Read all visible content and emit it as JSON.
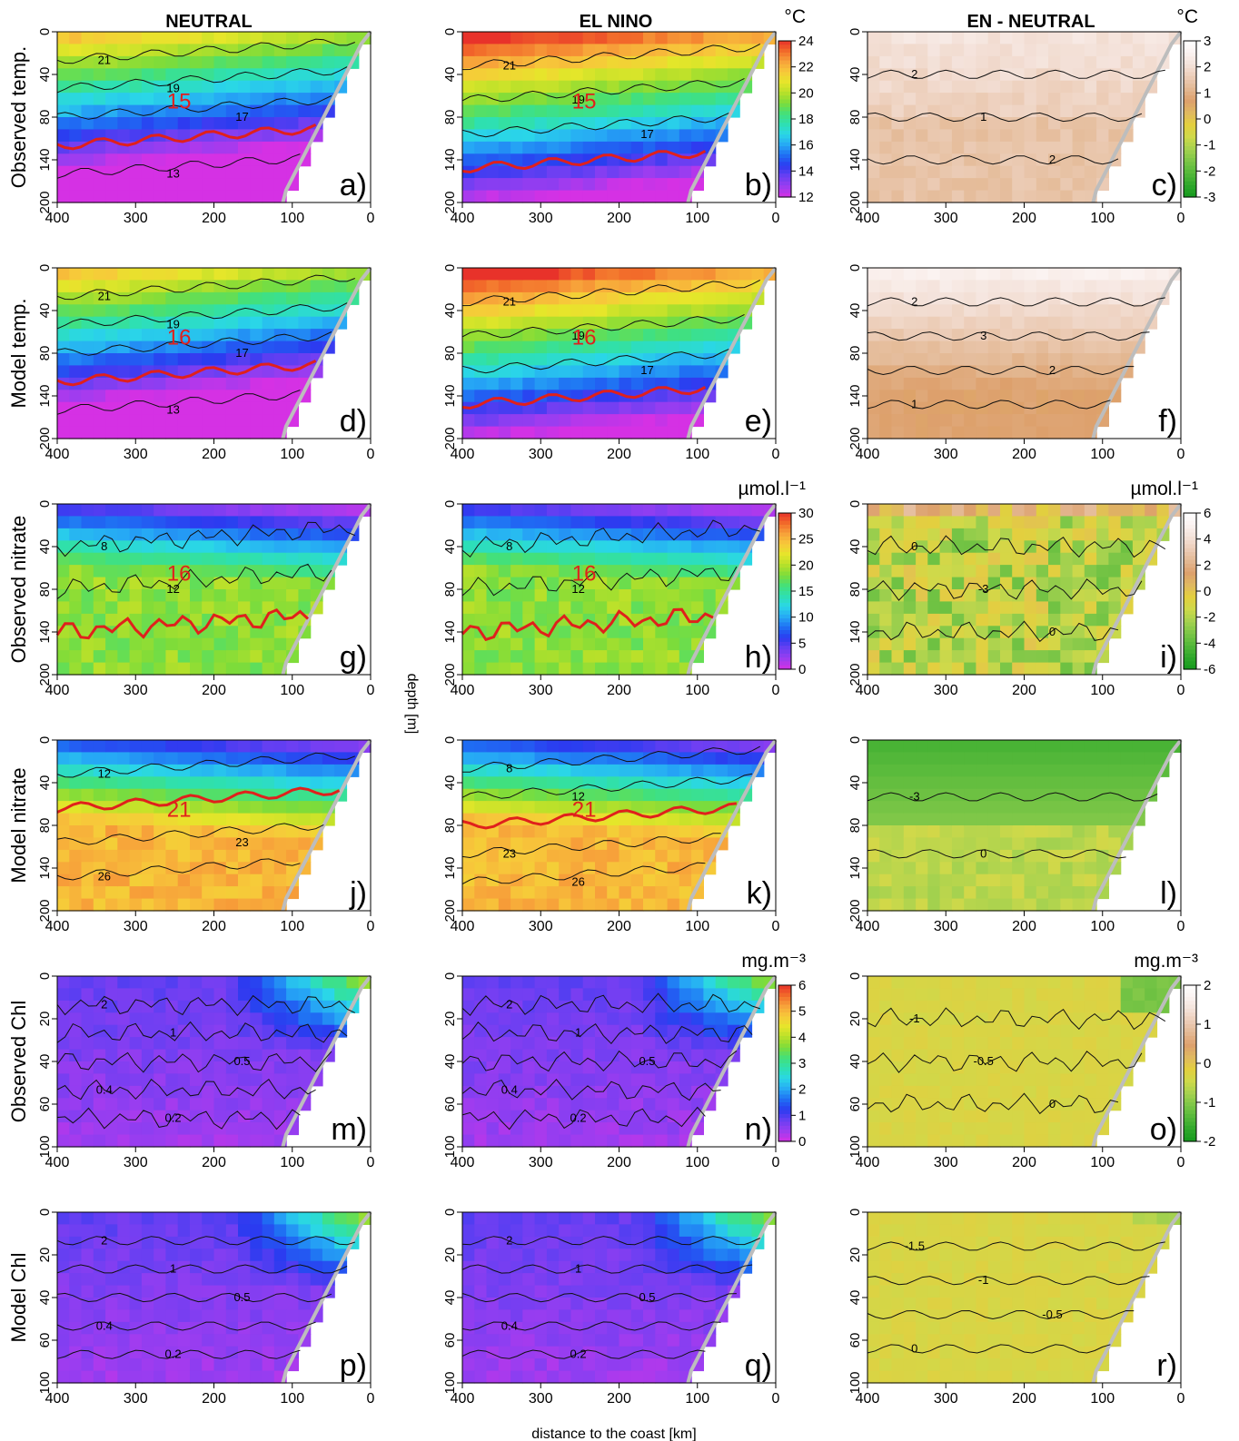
{
  "column_titles": [
    "NEUTRAL",
    "EL NINO",
    "EN - NEUTRAL"
  ],
  "xlabel": "distance to the coast [km]",
  "ylabel": "depth [m]",
  "colorbar_colors": {
    "temp": [
      "#d531e4",
      "#9b3df0",
      "#6a3ff2",
      "#2b3bf0",
      "#1f6ef3",
      "#26a8f5",
      "#2ad6e8",
      "#2ee0b0",
      "#43e07a",
      "#7ddc3a",
      "#b7e02a",
      "#e6e62a",
      "#f7c93a",
      "#f7a23a",
      "#f26a2a",
      "#e8322a"
    ],
    "diff": [
      "#159a1e",
      "#2fa82b",
      "#55b93a",
      "#7cc647",
      "#a6d24f",
      "#cfd94a",
      "#e3cf3f",
      "#e0b960",
      "#dda06c",
      "#e3b893",
      "#eccdb8",
      "#f4e2da",
      "#fbf3f1",
      "#ffffff"
    ]
  },
  "rows": [
    {
      "label": "Observed temp.",
      "yticks": [
        "0",
        "40",
        "80",
        "140",
        "200"
      ],
      "chart_data": [
        {
          "type": "heatmap",
          "panel": "a)",
          "title": "NEUTRAL",
          "variable": "temperature",
          "unit": "°C",
          "x": [
            400,
            300,
            200,
            100,
            0
          ],
          "ylim": [
            0,
            200
          ],
          "contours": [
            21,
            19,
            17,
            15,
            13
          ],
          "highlight_isoline": 15,
          "max_distance_km_by_depth": [
            [
              0,
              60
            ],
            [
              80,
              60
            ],
            [
              140,
              80
            ],
            [
              200,
              100
            ]
          ]
        },
        {
          "type": "heatmap",
          "panel": "b)",
          "title": "EL NINO",
          "variable": "temperature",
          "unit": "°C",
          "x": [
            400,
            300,
            200,
            100,
            0
          ],
          "ylim": [
            0,
            200
          ],
          "contours": [
            21,
            19,
            17,
            15
          ],
          "highlight_isoline": 15,
          "colorbar_ticks": [
            24,
            22,
            20,
            18,
            16,
            14,
            12
          ],
          "max_distance_km_by_depth": [
            [
              0,
              10
            ],
            [
              80,
              60
            ],
            [
              140,
              100
            ],
            [
              200,
              100
            ]
          ]
        },
        {
          "type": "heatmap",
          "panel": "c)",
          "title": "EN - NEUTRAL",
          "variable": "temperature difference",
          "unit": "°C",
          "x": [
            400,
            300,
            200,
            100,
            0
          ],
          "ylim": [
            0,
            200
          ],
          "contours": [
            2,
            1,
            2
          ],
          "colorbar_ticks": [
            3,
            2,
            1,
            0,
            -1,
            -2,
            -3
          ]
        }
      ]
    },
    {
      "label": "Model temp.",
      "yticks": [
        "0",
        "40",
        "80",
        "140",
        "200"
      ],
      "chart_data": [
        {
          "type": "heatmap",
          "panel": "d)",
          "title": "NEUTRAL",
          "variable": "temperature",
          "unit": "°C",
          "x": [
            400,
            300,
            200,
            100,
            0
          ],
          "ylim": [
            0,
            200
          ],
          "contours": [
            21,
            19,
            17,
            16,
            13
          ],
          "highlight_isoline": 16
        },
        {
          "type": "heatmap",
          "panel": "e)",
          "title": "EL NINO",
          "variable": "temperature",
          "unit": "°C",
          "x": [
            400,
            300,
            200,
            100,
            0
          ],
          "ylim": [
            0,
            200
          ],
          "contours": [
            21,
            19,
            17,
            16
          ],
          "highlight_isoline": 16
        },
        {
          "type": "heatmap",
          "panel": "f)",
          "title": "EN - NEUTRAL",
          "variable": "temperature difference",
          "unit": "°C",
          "x": [
            400,
            300,
            200,
            100,
            0
          ],
          "ylim": [
            0,
            200
          ],
          "contours": [
            2,
            3,
            2,
            1
          ]
        }
      ]
    },
    {
      "label": "Observed nitrate",
      "yticks": [
        "0",
        "40",
        "80",
        "140",
        "200"
      ],
      "chart_data": [
        {
          "type": "heatmap",
          "panel": "g)",
          "title": "NEUTRAL",
          "variable": "nitrate",
          "unit": "µmol.l⁻¹",
          "x": [
            400,
            300,
            200,
            100,
            0
          ],
          "ylim": [
            0,
            200
          ],
          "contours": [
            8,
            12,
            16
          ],
          "highlight_isoline": 16
        },
        {
          "type": "heatmap",
          "panel": "h)",
          "title": "EL NINO",
          "variable": "nitrate",
          "unit": "µmol.l⁻¹",
          "x": [
            400,
            300,
            200,
            100,
            0
          ],
          "ylim": [
            0,
            200
          ],
          "contours": [
            8,
            12,
            16
          ],
          "highlight_isoline": 16,
          "colorbar_ticks": [
            30,
            25,
            20,
            15,
            10,
            5,
            0
          ]
        },
        {
          "type": "heatmap",
          "panel": "i)",
          "title": "EN - NEUTRAL",
          "variable": "nitrate difference",
          "unit": "µmol.l⁻¹",
          "x": [
            400,
            300,
            200,
            100,
            0
          ],
          "ylim": [
            0,
            200
          ],
          "contours": [
            0,
            -3,
            0
          ],
          "colorbar_ticks": [
            6,
            4,
            2,
            0,
            -2,
            -4,
            -6
          ]
        }
      ]
    },
    {
      "label": "Model nitrate",
      "yticks": [
        "0",
        "40",
        "80",
        "140",
        "200"
      ],
      "chart_data": [
        {
          "type": "heatmap",
          "panel": "j)",
          "title": "NEUTRAL",
          "variable": "nitrate",
          "unit": "µmol.l⁻¹",
          "x": [
            400,
            300,
            200,
            100,
            0
          ],
          "ylim": [
            0,
            200
          ],
          "contours": [
            12,
            21,
            23,
            26
          ],
          "highlight_isoline": 21
        },
        {
          "type": "heatmap",
          "panel": "k)",
          "title": "EL NINO",
          "variable": "nitrate",
          "unit": "µmol.l⁻¹",
          "x": [
            400,
            300,
            200,
            100,
            0
          ],
          "ylim": [
            0,
            200
          ],
          "contours": [
            8,
            12,
            21,
            23,
            26
          ],
          "highlight_isoline": 21
        },
        {
          "type": "heatmap",
          "panel": "l)",
          "title": "EN - NEUTRAL",
          "variable": "nitrate difference",
          "unit": "µmol.l⁻¹",
          "x": [
            400,
            300,
            200,
            100,
            0
          ],
          "ylim": [
            0,
            200
          ],
          "contours": [
            -3,
            0
          ]
        }
      ]
    },
    {
      "label": "Observed Chl",
      "yticks": [
        "0",
        "20",
        "40",
        "60",
        "100"
      ],
      "chart_data": [
        {
          "type": "heatmap",
          "panel": "m)",
          "title": "NEUTRAL",
          "variable": "chlorophyll",
          "unit": "mg.m⁻³",
          "x": [
            400,
            300,
            200,
            100,
            0
          ],
          "ylim": [
            0,
            100
          ],
          "contours": [
            2,
            1,
            0.5,
            0.4,
            0.2
          ]
        },
        {
          "type": "heatmap",
          "panel": "n)",
          "title": "EL NINO",
          "variable": "chlorophyll",
          "unit": "mg.m⁻³",
          "x": [
            400,
            300,
            200,
            100,
            0
          ],
          "ylim": [
            0,
            100
          ],
          "contours": [
            2,
            1,
            0.5,
            0.4,
            0.2
          ],
          "colorbar_ticks": [
            6,
            5,
            4,
            3,
            2,
            1,
            0
          ]
        },
        {
          "type": "heatmap",
          "panel": "o)",
          "title": "EN - NEUTRAL",
          "variable": "chlorophyll difference",
          "unit": "mg.m⁻³",
          "x": [
            400,
            300,
            200,
            100,
            0
          ],
          "ylim": [
            0,
            100
          ],
          "contours": [
            -1,
            -0.5,
            0
          ],
          "colorbar_ticks": [
            2,
            1,
            0,
            -1,
            -2
          ]
        }
      ]
    },
    {
      "label": "Model Chl",
      "yticks": [
        "0",
        "20",
        "40",
        "60",
        "100"
      ],
      "chart_data": [
        {
          "type": "heatmap",
          "panel": "p)",
          "title": "NEUTRAL",
          "variable": "chlorophyll",
          "unit": "mg.m⁻³",
          "x": [
            400,
            300,
            200,
            100,
            0
          ],
          "ylim": [
            0,
            100
          ],
          "contours": [
            2,
            1,
            0.5,
            0.4,
            0.2
          ]
        },
        {
          "type": "heatmap",
          "panel": "q)",
          "title": "EL NINO",
          "variable": "chlorophyll",
          "unit": "mg.m⁻³",
          "x": [
            400,
            300,
            200,
            100,
            0
          ],
          "ylim": [
            0,
            100
          ],
          "contours": [
            2,
            1,
            0.5,
            0.4,
            0.2
          ]
        },
        {
          "type": "heatmap",
          "panel": "r)",
          "title": "EN - NEUTRAL",
          "variable": "chlorophyll difference",
          "unit": "mg.m⁻³",
          "x": [
            400,
            300,
            200,
            100,
            0
          ],
          "ylim": [
            0,
            100
          ],
          "contours": [
            -1.5,
            -1,
            -0.5,
            0
          ]
        }
      ]
    }
  ],
  "colorbars": [
    {
      "row": 0,
      "unit": "°C",
      "ticks": [
        "24",
        "22",
        "20",
        "18",
        "16",
        "14",
        "12"
      ],
      "kind": "temp"
    },
    {
      "row": 0,
      "unit": "°C",
      "ticks": [
        "3",
        "2",
        "1",
        "0",
        "-1",
        "-2",
        "-3"
      ],
      "kind": "diff"
    },
    {
      "row": 2,
      "unit": "µmol.l⁻¹",
      "ticks": [
        "30",
        "25",
        "20",
        "15",
        "10",
        "5",
        "0"
      ],
      "kind": "temp"
    },
    {
      "row": 2,
      "unit": "µmol.l⁻¹",
      "ticks": [
        "6",
        "4",
        "2",
        "0",
        "-2",
        "-4",
        "-6"
      ],
      "kind": "diff"
    },
    {
      "row": 4,
      "unit": "mg.m⁻³",
      "ticks": [
        "6",
        "5",
        "4",
        "3",
        "2",
        "1",
        "0"
      ],
      "kind": "temp"
    },
    {
      "row": 4,
      "unit": "mg.m⁻³",
      "ticks": [
        "2",
        "1",
        "0",
        "-1",
        "-2"
      ],
      "kind": "diff"
    }
  ],
  "isoline_labels": [
    {
      "row": 0,
      "col": 0,
      "text": "15"
    },
    {
      "row": 0,
      "col": 1,
      "text": "15"
    },
    {
      "row": 1,
      "col": 0,
      "text": "16"
    },
    {
      "row": 1,
      "col": 1,
      "text": "16"
    },
    {
      "row": 2,
      "col": 0,
      "text": "16"
    },
    {
      "row": 2,
      "col": 1,
      "text": "16"
    },
    {
      "row": 3,
      "col": 0,
      "text": "21"
    },
    {
      "row": 3,
      "col": 1,
      "text": "21"
    }
  ]
}
